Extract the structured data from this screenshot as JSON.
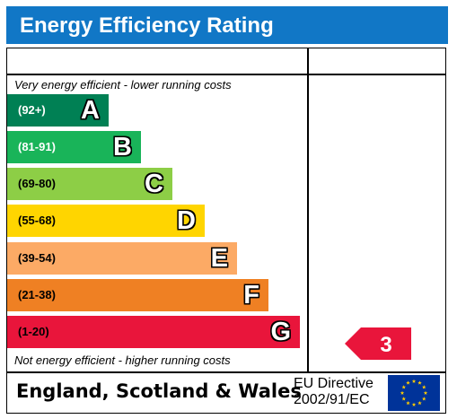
{
  "header": {
    "title": "Energy Efficiency Rating"
  },
  "captions": {
    "top": "Very energy efficient - lower running costs",
    "bottom": "Not energy efficient - higher running costs"
  },
  "chart_data": {
    "type": "bar",
    "title": "Energy Efficiency Rating",
    "categories": [
      "A",
      "B",
      "C",
      "D",
      "E",
      "F",
      "G"
    ],
    "ranges": [
      "(92+)",
      "(81-91)",
      "(69-80)",
      "(55-68)",
      "(39-54)",
      "(21-38)",
      "(1-20)"
    ],
    "colors": [
      "#008054",
      "#19b459",
      "#8dce46",
      "#ffd500",
      "#fcaa65",
      "#ef8023",
      "#e9153b"
    ],
    "range_text_colors": [
      "#ffffff",
      "#ffffff",
      "#000000",
      "#000000",
      "#000000",
      "#000000",
      "#000000"
    ],
    "current_rating": {
      "value": 3,
      "band": "G",
      "color": "#e9153b"
    }
  },
  "footer": {
    "region": "England, Scotland & Wales",
    "directive_line1": "EU Directive",
    "directive_line2": "2002/91/EC",
    "flag_icon": "eu-flag-icon",
    "flag_color": "#003399",
    "star_color": "#ffcc00"
  }
}
